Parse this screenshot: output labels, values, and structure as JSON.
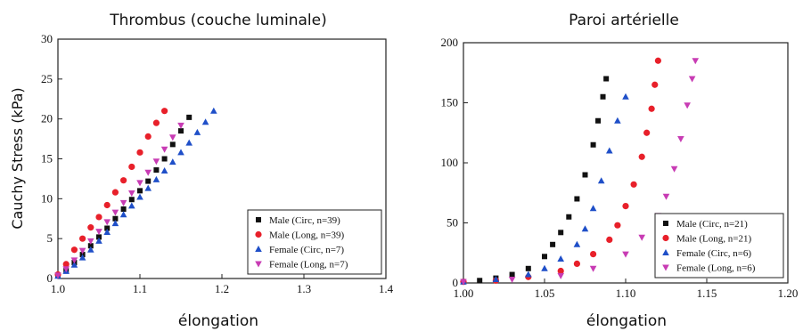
{
  "chart_data": [
    {
      "type": "scatter",
      "title": "Thrombus (couche luminale)",
      "xlabel": "élongation",
      "ylabel": "Cauchy Stress (kPa)",
      "xlim": [
        1.0,
        1.4
      ],
      "ylim": [
        0,
        30
      ],
      "xticks": [
        "1.0",
        "1.1",
        "1.2",
        "1.3",
        "1.4"
      ],
      "yticks": [
        "0",
        "5",
        "10",
        "15",
        "20",
        "25",
        "30"
      ],
      "legend_position": "bottom-right",
      "series": [
        {
          "name": "Male (Circ, n=39)",
          "color": "#111111",
          "marker": "square",
          "x": [
            1.0,
            1.01,
            1.02,
            1.03,
            1.04,
            1.05,
            1.06,
            1.07,
            1.08,
            1.09,
            1.1,
            1.11,
            1.12,
            1.13,
            1.14,
            1.15,
            1.16
          ],
          "y": [
            0.4,
            1.0,
            2.0,
            3.0,
            4.1,
            5.2,
            6.3,
            7.5,
            8.7,
            9.9,
            11.0,
            12.2,
            13.6,
            15.0,
            16.8,
            18.5,
            20.2
          ]
        },
        {
          "name": "Male (Long, n=39)",
          "color": "#e8202a",
          "marker": "circle",
          "x": [
            1.0,
            1.01,
            1.02,
            1.03,
            1.04,
            1.05,
            1.06,
            1.07,
            1.08,
            1.09,
            1.1,
            1.11,
            1.12,
            1.13
          ],
          "y": [
            0.5,
            1.8,
            3.6,
            5.0,
            6.4,
            7.7,
            9.2,
            10.8,
            12.3,
            14.0,
            15.8,
            17.8,
            19.5,
            21.0
          ]
        },
        {
          "name": "Female (Circ, n=7)",
          "color": "#1f4fc8",
          "marker": "triangle-up",
          "x": [
            1.0,
            1.01,
            1.02,
            1.03,
            1.04,
            1.05,
            1.06,
            1.07,
            1.08,
            1.09,
            1.1,
            1.11,
            1.12,
            1.13,
            1.14,
            1.15,
            1.16,
            1.17,
            1.18,
            1.19
          ],
          "y": [
            0.3,
            0.9,
            1.7,
            2.6,
            3.6,
            4.7,
            5.8,
            6.9,
            8.0,
            9.1,
            10.2,
            11.3,
            12.4,
            13.5,
            14.6,
            15.8,
            17.0,
            18.3,
            19.6,
            21.0
          ]
        },
        {
          "name": "Female (Long, n=7)",
          "color": "#c83cb4",
          "marker": "triangle-down",
          "x": [
            1.0,
            1.01,
            1.02,
            1.03,
            1.04,
            1.05,
            1.06,
            1.07,
            1.08,
            1.09,
            1.1,
            1.11,
            1.12,
            1.13,
            1.14,
            1.15
          ],
          "y": [
            0.4,
            1.2,
            2.3,
            3.5,
            4.7,
            5.9,
            7.1,
            8.3,
            9.5,
            10.7,
            12.0,
            13.3,
            14.7,
            16.2,
            17.7,
            19.2
          ]
        }
      ]
    },
    {
      "type": "scatter",
      "title": "Paroi artérielle",
      "xlabel": "élongation",
      "ylabel": "",
      "xlim": [
        1.0,
        1.2
      ],
      "ylim": [
        0,
        200
      ],
      "xticks": [
        "1.00",
        "1.05",
        "1.10",
        "1.15",
        "1.20"
      ],
      "yticks": [
        "0",
        "50",
        "100",
        "150",
        "200"
      ],
      "legend_position": "bottom-right",
      "series": [
        {
          "name": "Male (Circ, n=21)",
          "color": "#111111",
          "marker": "square",
          "x": [
            1.0,
            1.01,
            1.02,
            1.03,
            1.04,
            1.05,
            1.055,
            1.06,
            1.065,
            1.07,
            1.075,
            1.08,
            1.083,
            1.086,
            1.088
          ],
          "y": [
            1,
            2,
            4,
            7,
            12,
            22,
            32,
            42,
            55,
            70,
            90,
            115,
            135,
            155,
            170
          ]
        },
        {
          "name": "Male (Long, n=21)",
          "color": "#e8202a",
          "marker": "circle",
          "x": [
            1.0,
            1.02,
            1.04,
            1.06,
            1.07,
            1.08,
            1.09,
            1.095,
            1.1,
            1.105,
            1.11,
            1.113,
            1.116,
            1.118,
            1.12
          ],
          "y": [
            1,
            2,
            5,
            10,
            16,
            24,
            36,
            48,
            64,
            82,
            105,
            125,
            145,
            165,
            185
          ]
        },
        {
          "name": "Female (Circ, n=6)",
          "color": "#1f4fc8",
          "marker": "triangle-up",
          "x": [
            1.0,
            1.02,
            1.04,
            1.05,
            1.06,
            1.07,
            1.075,
            1.08,
            1.085,
            1.09,
            1.095,
            1.1
          ],
          "y": [
            1,
            3,
            7,
            12,
            20,
            32,
            45,
            62,
            85,
            110,
            135,
            155
          ]
        },
        {
          "name": "Female (Long, n=6)",
          "color": "#c83cb4",
          "marker": "triangle-down",
          "x": [
            1.0,
            1.03,
            1.06,
            1.08,
            1.1,
            1.11,
            1.12,
            1.125,
            1.13,
            1.134,
            1.138,
            1.141,
            1.143
          ],
          "y": [
            1,
            3,
            6,
            12,
            24,
            38,
            56,
            72,
            95,
            120,
            148,
            170,
            185
          ]
        }
      ]
    }
  ]
}
